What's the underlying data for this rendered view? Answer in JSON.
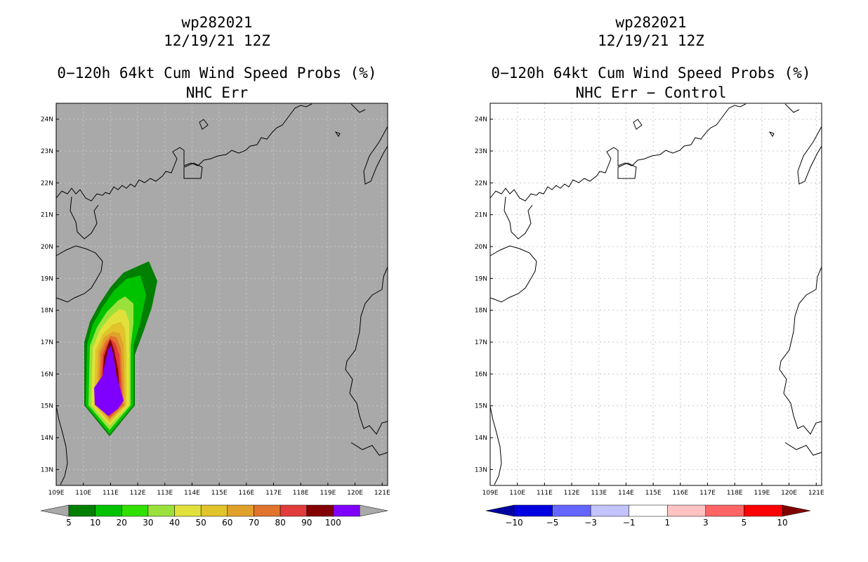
{
  "panels": [
    {
      "storm_id": "wp282021",
      "datetime": "12/19/21 12Z",
      "product": "0−120h 64kt Cum Wind Speed Probs (%)",
      "subtitle": "NHC Err",
      "map_background": "#a9a9a9",
      "colorbar": {
        "labels": [
          "5",
          "10",
          "20",
          "30",
          "40",
          "50",
          "60",
          "70",
          "80",
          "90",
          "100"
        ],
        "colors": [
          "#007f00",
          "#00c300",
          "#33e100",
          "#9be13b",
          "#e1e13b",
          "#e1c32c",
          "#e1a22c",
          "#e1742c",
          "#e13b3b",
          "#820000",
          "#7f00ff"
        ],
        "end_colors": [
          "#a9a9a9",
          "#a9a9a9"
        ]
      }
    },
    {
      "storm_id": "wp282021",
      "datetime": "12/19/21 12Z",
      "product": "0−120h 64kt Cum Wind Speed Probs (%)",
      "subtitle": "NHC Err − Control",
      "map_background": "#ffffff",
      "colorbar": {
        "labels": [
          "−10",
          "−5",
          "−3",
          "−1",
          "1",
          "3",
          "5",
          "10"
        ],
        "colors": [
          "#0000e1",
          "#6565ff",
          "#c3c3ff",
          "#ffffff",
          "#ffc3c3",
          "#ff6565",
          "#ff0000"
        ],
        "end_colors": [
          "#0000a0",
          "#7f0000"
        ]
      }
    }
  ],
  "axes": {
    "lon_ticks": [
      "109E",
      "110E",
      "111E",
      "112E",
      "113E",
      "114E",
      "115E",
      "116E",
      "117E",
      "118E",
      "119E",
      "120E",
      "121E"
    ],
    "lat_ticks": [
      "13N",
      "14N",
      "15N",
      "16N",
      "17N",
      "18N",
      "19N",
      "20N",
      "21N",
      "22N",
      "23N",
      "24N"
    ]
  }
}
